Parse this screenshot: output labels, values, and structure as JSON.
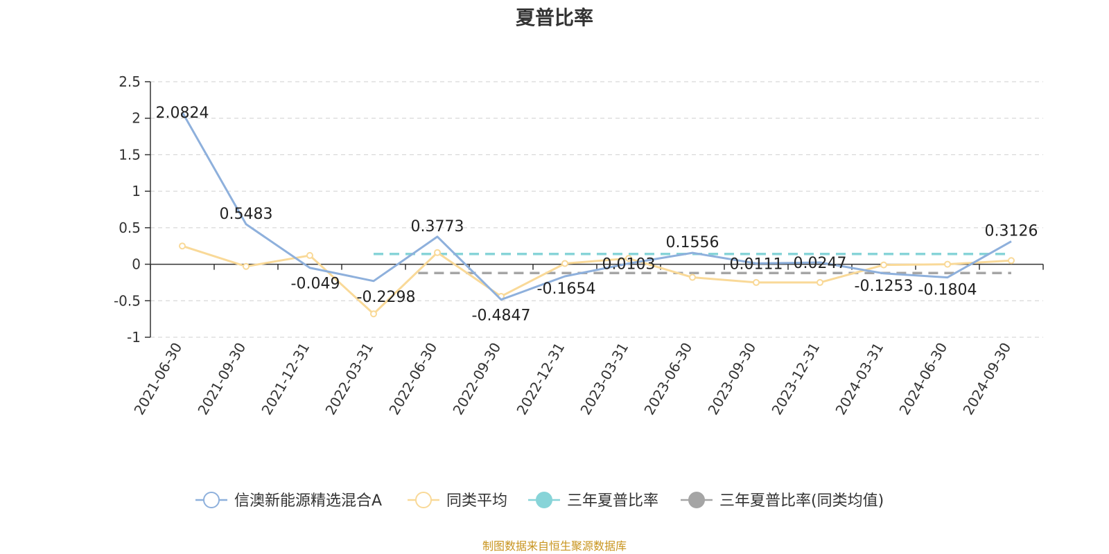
{
  "chart_data": {
    "type": "line",
    "title": "夏普比率",
    "x": [
      "2021-06-30",
      "2021-09-30",
      "2021-12-31",
      "2022-03-31",
      "2022-06-30",
      "2022-09-30",
      "2022-12-31",
      "2023-03-31",
      "2023-06-30",
      "2023-09-30",
      "2023-12-31",
      "2024-03-31",
      "2024-06-30",
      "2024-09-30"
    ],
    "ylim": [
      -1,
      2.5
    ],
    "yticks": [
      "2.5",
      "2",
      "1.5",
      "1",
      "0.5",
      "0",
      "-0.5",
      "-1"
    ],
    "grid": true,
    "legend_position": "bottom",
    "series": [
      {
        "name": "信澳新能源精选混合A",
        "color": "#8eb0dc",
        "values": [
          2.0824,
          0.5483,
          -0.049,
          -0.2298,
          0.3773,
          -0.4847,
          -0.1654,
          0.0103,
          0.1556,
          0.0111,
          0.0247,
          -0.1253,
          -0.1804,
          0.3126
        ],
        "labels": [
          "2.0824",
          "0.5483",
          "-0.049",
          "-0.2298",
          "0.3773",
          "-0.4847",
          "-0.1654",
          "0.0103",
          "0.1556",
          "0.0111",
          "0.0247",
          "-0.1253",
          "-0.1804",
          "0.3126"
        ]
      },
      {
        "name": "同类平均",
        "color": "#f9d998",
        "values": [
          0.25,
          -0.03,
          0.12,
          -0.68,
          0.16,
          -0.44,
          0.01,
          0.08,
          -0.18,
          -0.25,
          -0.25,
          -0.01,
          0.0,
          0.05
        ]
      },
      {
        "name": "三年夏普比率",
        "color": "#87d4d8",
        "value": 0.14,
        "dashed": true
      },
      {
        "name": "三年夏普比率(同类均值)",
        "color": "#a5a5a5",
        "value": -0.12,
        "dashed": true
      }
    ]
  },
  "source_note": {
    "text": "制图数据来自恒生聚源数据库",
    "color": "#c8941e"
  }
}
